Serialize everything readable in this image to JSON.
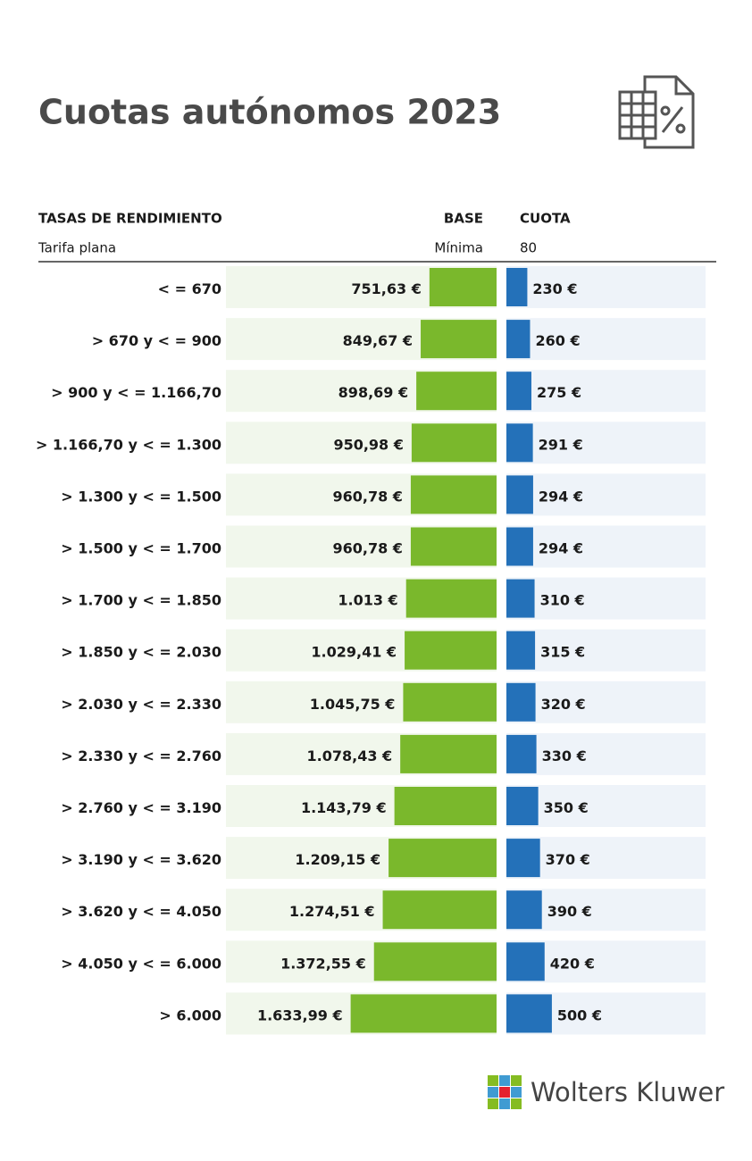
{
  "chart_data": {
    "type": "bar",
    "title": "Cuotas autónomos 2023",
    "category_header": "TASAS DE RENDIMIENTO",
    "flat_rate": {
      "label": "Tarifa plana",
      "base": "Mínima",
      "cuota": 80
    },
    "categories": [
      "< = 670",
      "> 670 y < = 900",
      "> 900 y < = 1.166,70",
      "> 1.166,70 y < = 1.300",
      "> 1.300 y < = 1.500",
      "> 1.500 y < = 1.700",
      "> 1.700 y < = 1.850",
      "> 1.850 y < = 2.030",
      "> 2.030 y < = 2.330",
      "> 2.330 y < = 2.760",
      "> 2.760 y < = 3.190",
      "> 3.190 y < = 3.620",
      "> 3.620 y < = 4.050",
      "> 4.050  y < = 6.000",
      "> 6.000"
    ],
    "series": [
      {
        "name": "BASE",
        "color": "#7ab82c",
        "background": "#f1f7ec",
        "xlim": [
          0,
          3030
        ],
        "values": [
          751.63,
          849.67,
          898.69,
          950.98,
          960.78,
          960.78,
          1013,
          1029.41,
          1045.75,
          1078.43,
          1143.79,
          1209.15,
          1274.51,
          1372.55,
          1633.99
        ],
        "value_labels": [
          "751,63 €",
          "849,67 €",
          "898,69 €",
          "950,98 €",
          "960,78 €",
          "960,78 €",
          "1.013 €",
          "1.029,41 €",
          "1.045,75 €",
          "1.078,43 €",
          "1.143,79 €",
          "1.209,15 €",
          "1.274,51 €",
          "1.372,55 €",
          "1.633,99 €"
        ]
      },
      {
        "name": "CUOTA",
        "color": "#2471b9",
        "background": "#eef3f9",
        "xlim": [
          0,
          2190
        ],
        "values": [
          230,
          260,
          275,
          291,
          294,
          294,
          310,
          315,
          320,
          330,
          350,
          370,
          390,
          420,
          500
        ],
        "value_labels": [
          "230 €",
          "260 €",
          "275 €",
          "291 €",
          "294 €",
          "294 €",
          "310 €",
          "315 €",
          "320 €",
          "330 €",
          "350 €",
          "370 €",
          "390 €",
          "420 €",
          "500 €"
        ]
      }
    ]
  },
  "footer": {
    "brand": "Wolters Kluwer"
  }
}
